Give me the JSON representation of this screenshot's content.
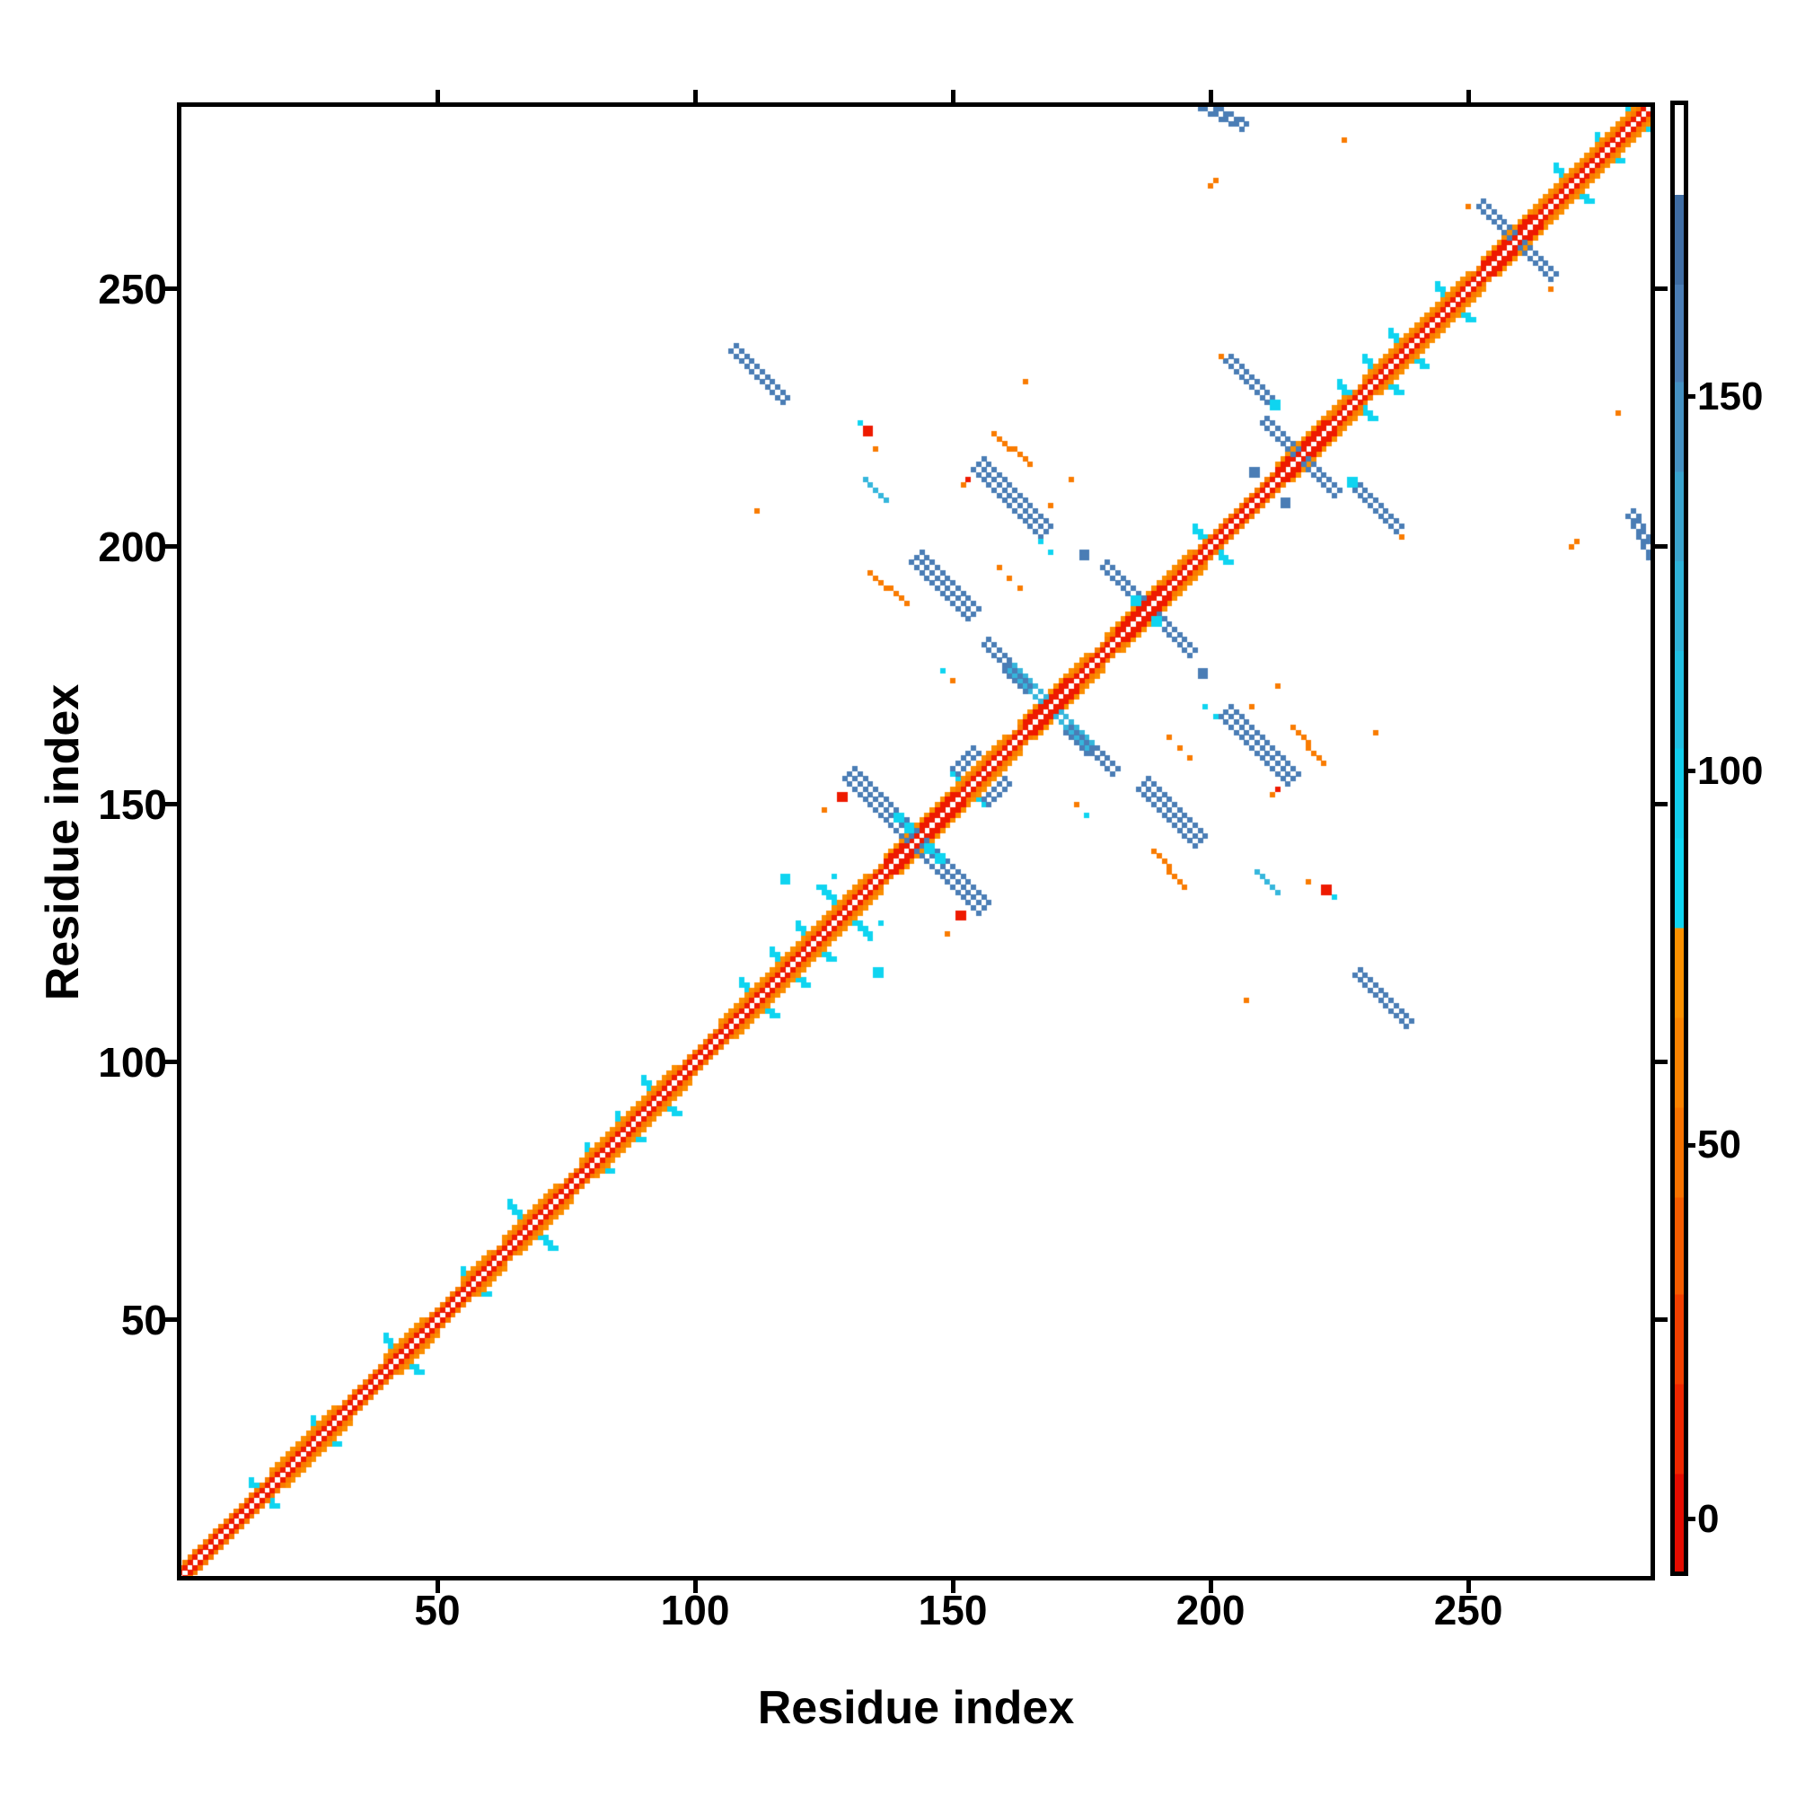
{
  "chart_data": {
    "type": "heatmap",
    "subtype": "protein-contact-map",
    "title": "",
    "xlabel": "Residue index",
    "ylabel": "Residue index",
    "x_range": [
      0,
      285
    ],
    "y_range": [
      0,
      285
    ],
    "x_ticks": [
      50,
      100,
      150,
      200,
      250
    ],
    "y_ticks": [
      50,
      100,
      150,
      200,
      250
    ],
    "grid": false,
    "background": "#ffffff",
    "colors": {
      "red": "#ee1a00",
      "red_deep": "#e30b00",
      "orange": "#f97b00",
      "orange_light": "#fb8e00",
      "orange_deep": "#f55c00",
      "cyan": "#0fd4f0",
      "cyan_med": "#35b6dc",
      "steel": "#4a7db5",
      "steel_dark": "#3f6da3",
      "white": "#ffffff"
    },
    "colorbar": {
      "ticks": [
        0,
        50,
        100,
        150
      ],
      "value_range": [
        -7,
        189
      ],
      "bands": [
        {
          "v0": -7,
          "v1": 6,
          "c": "#e30b00"
        },
        {
          "v0": 6,
          "v1": 18,
          "c": "#ee2600"
        },
        {
          "v0": 18,
          "v1": 30,
          "c": "#f23f00"
        },
        {
          "v0": 30,
          "v1": 43,
          "c": "#f55c00"
        },
        {
          "v0": 43,
          "v1": 55,
          "c": "#f87300"
        },
        {
          "v0": 55,
          "v1": 67,
          "c": "#fa8300"
        },
        {
          "v0": 67,
          "v1": 79,
          "c": "#fb9100"
        },
        {
          "v0": 79,
          "v1": 91,
          "c": "#0fd4f0"
        },
        {
          "v0": 91,
          "v1": 103,
          "c": "#12cdec"
        },
        {
          "v0": 103,
          "v1": 116,
          "c": "#22bfe2"
        },
        {
          "v0": 116,
          "v1": 128,
          "c": "#2fb2d8"
        },
        {
          "v0": 128,
          "v1": 140,
          "c": "#3aa3cd"
        },
        {
          "v0": 140,
          "v1": 152,
          "c": "#4591c2"
        },
        {
          "v0": 152,
          "v1": 165,
          "c": "#4a7db5"
        },
        {
          "v0": 165,
          "v1": 177,
          "c": "#3f6da3"
        },
        {
          "v0": 177,
          "v1": 189,
          "c": "#ffffff"
        }
      ]
    },
    "diagonal_band": {
      "off1_color": "red",
      "off2_color": "orange",
      "off3_color": "orange_light",
      "off3_ranges": [
        [
          18,
          30
        ],
        [
          40,
          47
        ],
        [
          55,
          60
        ],
        [
          63,
          73
        ],
        [
          78,
          96
        ],
        [
          105,
          133
        ],
        [
          137,
          160
        ],
        [
          163,
          176
        ],
        [
          180,
          196
        ],
        [
          213,
          226
        ],
        [
          230,
          250
        ],
        [
          253,
          285
        ]
      ],
      "red2_ranges": [
        [
          137,
          150
        ],
        [
          164,
          172
        ],
        [
          182,
          190
        ],
        [
          213,
          222
        ],
        [
          253,
          262
        ]
      ]
    },
    "diagonal_bumps": [
      {
        "c": 16,
        "r": 2
      },
      {
        "c": 28,
        "r": 2
      },
      {
        "c": 43,
        "r": 2.5
      },
      {
        "c": 57,
        "r": 2
      },
      {
        "c": 68,
        "r": 3.5
      },
      {
        "c": 81,
        "r": 2
      },
      {
        "c": 87,
        "r": 2
      },
      {
        "c": 93,
        "r": 2.5
      },
      {
        "c": 112,
        "r": 3
      },
      {
        "c": 118,
        "r": 2.5
      },
      {
        "c": 123,
        "r": 3
      },
      {
        "c": 129,
        "r": 3.5
      },
      {
        "c": 153,
        "r": 2.5
      },
      {
        "c": 200,
        "r": 2.5
      },
      {
        "c": 228,
        "r": 2.5
      },
      {
        "c": 233,
        "r": 2.5
      },
      {
        "c": 238,
        "r": 2.5
      },
      {
        "c": 247,
        "r": 2.5
      },
      {
        "c": 270,
        "r": 3
      },
      {
        "c": 277,
        "r": 2
      },
      {
        "c": 283,
        "r": 2.5
      }
    ],
    "contact_segments": [
      {
        "x1": 107,
        "y1": 238,
        "x2": 117,
        "y2": 228,
        "color": "steel",
        "w": 2.2
      },
      {
        "x1": 155,
        "y1": 216,
        "x2": 168,
        "y2": 203,
        "color": "steel",
        "w": 2.4
      },
      {
        "x1": 158,
        "y1": 222,
        "x2": 165,
        "y2": 216,
        "color": "orange",
        "w": 1.2
      },
      {
        "x1": 143,
        "y1": 198,
        "x2": 154,
        "y2": 187,
        "color": "steel",
        "w": 2.4
      },
      {
        "x1": 134,
        "y1": 195,
        "x2": 141,
        "y2": 189,
        "color": "orange",
        "w": 1.2
      },
      {
        "x1": 179,
        "y1": 196,
        "x2": 196,
        "y2": 179,
        "color": "steel",
        "w": 2.2,
        "skip": 1.4
      },
      {
        "x1": 161,
        "y1": 176,
        "x2": 175,
        "y2": 162,
        "color": "cyan_med",
        "w": 2,
        "skip": 1.2
      },
      {
        "x1": 156,
        "y1": 181,
        "x2": 164,
        "y2": 172,
        "color": "steel",
        "w": 2
      },
      {
        "x1": 150,
        "y1": 157,
        "x2": 154,
        "y2": 161,
        "color": "steel",
        "w": 2.2
      },
      {
        "x1": 130,
        "y1": 156,
        "x2": 153,
        "y2": 133,
        "color": "steel",
        "w": 2.4,
        "skip": 1.2
      },
      {
        "x1": 203,
        "y1": 236,
        "x2": 211,
        "y2": 228,
        "color": "steel",
        "w": 2.2
      },
      {
        "x1": 210,
        "y1": 224,
        "x2": 224,
        "y2": 210,
        "color": "steel",
        "w": 2.2,
        "skip": 1.4
      },
      {
        "x1": 252,
        "y1": 266,
        "x2": 266,
        "y2": 252,
        "color": "steel",
        "w": 2,
        "skip": 1.4
      },
      {
        "x1": 197,
        "y1": 286,
        "x2": 206,
        "y2": 281,
        "color": "steel",
        "w": 2.2
      },
      {
        "x1": 133,
        "y1": 213,
        "x2": 137,
        "y2": 209,
        "color": "cyan_med",
        "w": 1.2
      }
    ],
    "contact_dots": [
      {
        "x": 112,
        "y": 207,
        "color": "orange",
        "s": 1
      },
      {
        "x": 133,
        "y": 222,
        "color": "red",
        "s": 2
      },
      {
        "x": 132,
        "y": 224,
        "color": "cyan",
        "s": 1
      },
      {
        "x": 135,
        "y": 219,
        "color": "orange",
        "s": 1
      },
      {
        "x": 125,
        "y": 149,
        "color": "orange",
        "s": 1
      },
      {
        "x": 128,
        "y": 151,
        "color": "red",
        "s": 2
      },
      {
        "x": 117,
        "y": 135,
        "color": "cyan",
        "s": 1.5
      },
      {
        "x": 124,
        "y": 134,
        "color": "cyan",
        "s": 1
      },
      {
        "x": 127,
        "y": 136,
        "color": "cyan",
        "s": 1
      },
      {
        "x": 153,
        "y": 213,
        "color": "red",
        "s": 1
      },
      {
        "x": 152,
        "y": 212,
        "color": "orange",
        "s": 1
      },
      {
        "x": 159,
        "y": 196,
        "color": "orange",
        "s": 1
      },
      {
        "x": 161,
        "y": 194,
        "color": "orange",
        "s": 1
      },
      {
        "x": 163,
        "y": 192,
        "color": "orange",
        "s": 1
      },
      {
        "x": 148,
        "y": 176,
        "color": "cyan",
        "s": 1
      },
      {
        "x": 150,
        "y": 174,
        "color": "orange",
        "s": 1
      },
      {
        "x": 167,
        "y": 201,
        "color": "cyan",
        "s": 1
      },
      {
        "x": 169,
        "y": 199,
        "color": "cyan",
        "s": 1
      },
      {
        "x": 200,
        "y": 270,
        "color": "orange",
        "s": 1
      },
      {
        "x": 201,
        "y": 271,
        "color": "orange",
        "s": 1
      },
      {
        "x": 226,
        "y": 279,
        "color": "orange",
        "s": 1
      },
      {
        "x": 164,
        "y": 232,
        "color": "orange",
        "s": 1
      },
      {
        "x": 250,
        "y": 266,
        "color": "orange",
        "s": 1
      },
      {
        "x": 202,
        "y": 237,
        "color": "orange",
        "s": 1
      },
      {
        "x": 212,
        "y": 227,
        "color": "cyan",
        "s": 1.5
      },
      {
        "x": 185,
        "y": 189,
        "color": "cyan",
        "s": 2
      },
      {
        "x": 139,
        "y": 147,
        "color": "cyan",
        "s": 2
      },
      {
        "x": 141,
        "y": 145,
        "color": "cyan",
        "s": 1.5
      },
      {
        "x": 208,
        "y": 214,
        "color": "steel",
        "s": 2
      },
      {
        "x": 175,
        "y": 198,
        "color": "steel",
        "s": 2
      },
      {
        "x": 169,
        "y": 208,
        "color": "orange",
        "s": 1
      },
      {
        "x": 173,
        "y": 213,
        "color": "orange",
        "s": 1
      }
    ]
  }
}
